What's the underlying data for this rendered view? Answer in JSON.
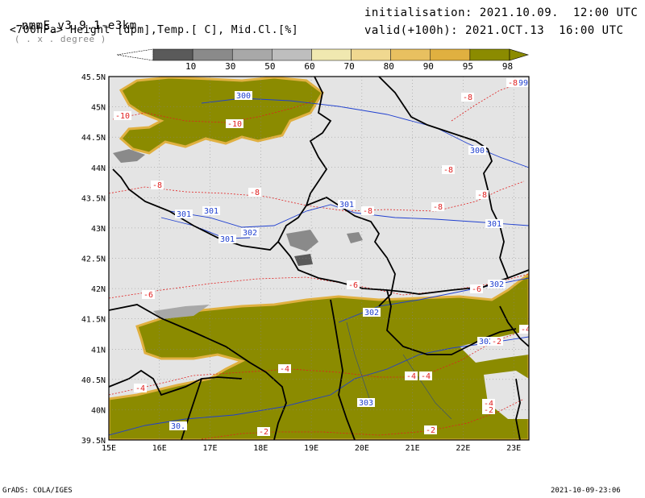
{
  "header": {
    "model_line": "-nmmE_v3.9.1-e3km",
    "model_suffix": "( . x . degree )",
    "variables_line": "<700hPa> Height [dpm],Temp.[ C], Mid.Cl.[%]",
    "init_line": "initialisation: 2021.10.09.  12:00 UTC",
    "valid_line": "valid(+100h): 2021.OCT.13  16:00 UTC"
  },
  "colorbar": {
    "labels": [
      "10",
      "30",
      "50",
      "60",
      "70",
      "80",
      "90",
      "95",
      "98"
    ],
    "colors": [
      "#5a5a5a",
      "#8a8a8a",
      "#a8a8a8",
      "#bebebe",
      "#f0e8b0",
      "#f0d890",
      "#e8c060",
      "#e0b040",
      "#8b8b00"
    ]
  },
  "map": {
    "lat_ticks": [
      "45.5N",
      "45N",
      "44.5N",
      "44N",
      "43.5N",
      "43N",
      "42.5N",
      "42N",
      "41.5N",
      "41N",
      "40.5N",
      "40N",
      "39.5N"
    ],
    "lon_ticks": [
      "15E",
      "16E",
      "17E",
      "18E",
      "19E",
      "20E",
      "21E",
      "22E",
      "23E"
    ],
    "background_color": "#e4e4e4",
    "cloud_color": "#8b8b00",
    "height_contour_color": "#2040d0",
    "temp_contour_color": "#e02020",
    "height_labels": [
      "299",
      "300",
      "300",
      "301",
      "301",
      "301",
      "301",
      "301",
      "302",
      "302",
      "302",
      "302",
      "303",
      "30."
    ],
    "temp_labels": [
      "-8",
      "-8",
      "-10",
      "-10",
      "-8",
      "-8",
      "-8",
      "-8",
      "-8",
      "-8",
      "-6",
      "-6",
      "-6",
      "-4",
      "-4",
      "-4",
      "-4",
      "-4",
      "-2",
      "-2",
      "-2",
      "-2",
      "-4"
    ]
  },
  "footer": {
    "left": "GrADS: COLA/IGES",
    "right": "2021-10-09-23:06"
  }
}
